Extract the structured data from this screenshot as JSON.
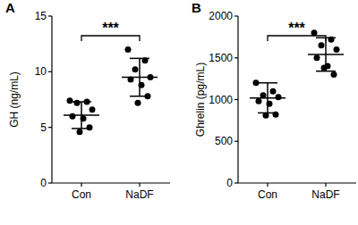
{
  "chart_data": [
    {
      "type": "scatter",
      "title": "A",
      "y_label": "GH  (ng/mL)",
      "categories": [
        "Con",
        "NaDF"
      ],
      "values": [
        6.1,
        9.5
      ],
      "errors": [
        1.2,
        1.7
      ],
      "points": [
        [
          7.4,
          7.3,
          7.2,
          6.6,
          6.0,
          5.8,
          5.0,
          4.6
        ],
        [
          12.0,
          11.0,
          10.2,
          9.5,
          9.3,
          8.8,
          7.8,
          7.2
        ]
      ],
      "annotation": "***",
      "color": "#000000",
      "ylim": [
        0,
        15
      ],
      "yticks": [
        0,
        5,
        10,
        15
      ]
    },
    {
      "type": "scatter",
      "title": "B",
      "y_label": "Ghrelin (pg/mL)",
      "categories": [
        "Con",
        "NaDF"
      ],
      "values": [
        1020,
        1540
      ],
      "errors": [
        180,
        200
      ],
      "points": [
        [
          1200,
          1100,
          1050,
          1030,
          980,
          950,
          820,
          810
        ],
        [
          1800,
          1720,
          1650,
          1600,
          1500,
          1400,
          1300,
          1380
        ]
      ],
      "annotation": "***",
      "color": "#000000",
      "ylim": [
        0,
        2000
      ],
      "yticks": [
        0,
        500,
        1000,
        1500,
        2000
      ]
    }
  ]
}
